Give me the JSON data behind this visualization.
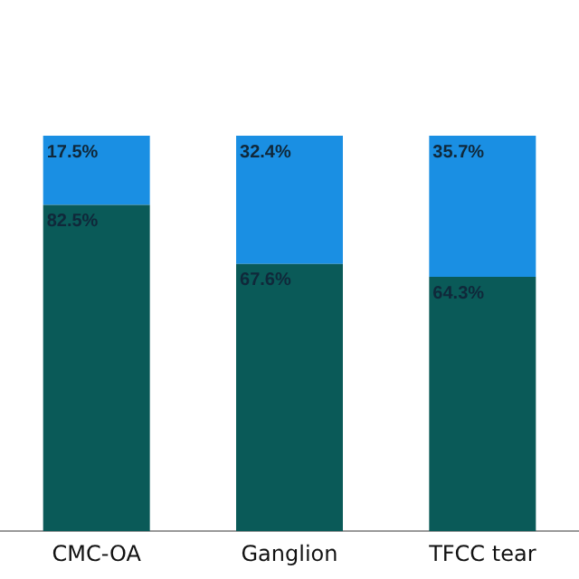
{
  "chart_data": {
    "type": "bar",
    "stacked": true,
    "categories": [
      "CMC-OA",
      "Ganglion",
      "TFCC tear"
    ],
    "series": [
      {
        "color": "#0a5a58",
        "values": [
          82.5,
          67.6,
          64.3
        ],
        "value_labels": [
          "82.5%",
          "67.6%",
          "64.3%"
        ]
      },
      {
        "color": "#1a8fe3",
        "values": [
          17.5,
          32.4,
          35.7
        ],
        "value_labels": [
          "17.5%",
          "32.4%",
          "35.7%"
        ]
      }
    ],
    "tick_labels": "x",
    "grid": false,
    "legend": false
  }
}
